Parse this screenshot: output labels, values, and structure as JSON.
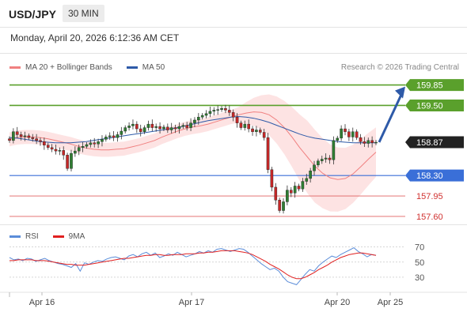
{
  "header": {
    "symbol": "USD/JPY",
    "timeframe": "30 MIN",
    "datetime": "Monday, April 20, 2026 6:12:36 AM CET"
  },
  "legend": {
    "ma20_label": "MA 20 + Bollinger Bands",
    "ma50_label": "MA 50",
    "ma20_color": "#f08080",
    "ma50_color": "#2e5aa8",
    "copyright": "Research © 2026 Trading Central"
  },
  "rsi_legend": {
    "rsi_label": "RSI",
    "ma_label": "9MA",
    "rsi_color": "#5b8dd9",
    "ma_color": "#e02020"
  },
  "colors": {
    "green": "#5aa02c",
    "blue": "#3a6fd8",
    "red": "#e06060",
    "arrow": "#2e5aa8",
    "candle_up": "#2f7d32",
    "candle_down": "#c62828",
    "band_fill": "#fde0e0"
  },
  "chart_data": {
    "type": "candlestick",
    "price_range": [
      157.45,
      159.98
    ],
    "levels": [
      {
        "value": 159.85,
        "label": "159.85",
        "kind": "resistance"
      },
      {
        "value": 159.5,
        "label": "159.50",
        "kind": "resistance"
      },
      {
        "value": 158.87,
        "label": "158.87",
        "kind": "current"
      },
      {
        "value": 158.3,
        "label": "158.30",
        "kind": "support"
      },
      {
        "value": 157.95,
        "label": "157.95",
        "kind": "support"
      },
      {
        "value": 157.6,
        "label": "157.60",
        "kind": "support"
      }
    ],
    "x_labels": [
      "Apr 16",
      "Apr 17",
      "Apr 20",
      "Apr 25"
    ],
    "closes": [
      158.9,
      159.05,
      159.0,
      158.97,
      158.98,
      158.95,
      158.93,
      158.9,
      158.88,
      158.82,
      158.78,
      158.75,
      158.72,
      158.73,
      158.65,
      158.42,
      158.68,
      158.72,
      158.78,
      158.8,
      158.83,
      158.86,
      158.84,
      158.88,
      158.92,
      158.96,
      158.98,
      158.95,
      159.0,
      159.06,
      159.12,
      159.15,
      159.18,
      159.1,
      159.05,
      159.12,
      159.18,
      159.12,
      159.14,
      159.1,
      159.13,
      159.08,
      159.12,
      159.1,
      159.14,
      159.16,
      159.12,
      159.2,
      159.25,
      159.3,
      159.33,
      159.36,
      159.4,
      159.42,
      159.43,
      159.45,
      159.42,
      159.38,
      159.3,
      159.2,
      159.12,
      159.18,
      159.1,
      159.05,
      159.08,
      159.04,
      158.95,
      158.4,
      158.1,
      157.88,
      157.7,
      157.85,
      158.05,
      158.0,
      158.12,
      158.07,
      158.2,
      158.25,
      158.38,
      158.48,
      158.55,
      158.58,
      158.6,
      158.57,
      158.9,
      158.94,
      159.1,
      159.05,
      158.96,
      159.05,
      158.95,
      158.88,
      158.85,
      158.9,
      158.86,
      158.87
    ],
    "ma20_values": [
      158.92,
      158.95,
      158.96,
      158.96,
      158.95,
      158.93,
      158.9,
      158.87,
      158.84,
      158.8,
      158.77,
      158.75,
      158.74,
      158.74,
      158.75,
      158.76,
      158.79,
      158.82,
      158.86,
      158.9,
      158.96,
      159.01,
      159.06,
      159.1,
      159.13,
      159.15,
      159.18,
      159.22,
      159.26,
      159.3,
      159.34,
      159.37,
      159.39,
      159.38,
      159.34,
      159.25,
      159.12,
      158.96,
      158.78,
      158.62,
      158.46,
      158.34,
      158.26,
      158.23,
      158.25,
      158.33,
      158.45,
      158.58,
      158.7
    ],
    "ma50_values": [
      158.95,
      158.94,
      158.92,
      158.9,
      158.88,
      158.87,
      158.86,
      158.86,
      158.86,
      158.87,
      158.88,
      158.9,
      158.92,
      158.94,
      158.96,
      158.98,
      159.0,
      159.02,
      159.04,
      159.06,
      159.08,
      159.1,
      159.12,
      159.15,
      159.18,
      159.21,
      159.24,
      159.26,
      159.28,
      159.3,
      159.31,
      159.3,
      159.28,
      159.25,
      159.21,
      159.16,
      159.11,
      159.06,
      159.01,
      158.97,
      158.94,
      158.92,
      158.9,
      158.88,
      158.87,
      158.86,
      158.86,
      158.86,
      158.86
    ],
    "rsi": {
      "levels": [
        {
          "value": 70,
          "label": "70"
        },
        {
          "value": 50,
          "label": "50"
        },
        {
          "value": 30,
          "label": "30"
        }
      ],
      "rsi_values": [
        56,
        53,
        54,
        52,
        55,
        54,
        51,
        53,
        55,
        52,
        50,
        48,
        47,
        45,
        43,
        48,
        38,
        49,
        47,
        50,
        52,
        51,
        54,
        56,
        57,
        55,
        53,
        58,
        60,
        57,
        61,
        63,
        59,
        62,
        56,
        58,
        61,
        59,
        63,
        60,
        57,
        59,
        61,
        64,
        62,
        65,
        63,
        67,
        68,
        66,
        64,
        66,
        68,
        67,
        63,
        58,
        53,
        48,
        44,
        40,
        42,
        38,
        30,
        24,
        22,
        20,
        27,
        34,
        40,
        38,
        45,
        50,
        54,
        58,
        56,
        60,
        63,
        66,
        69,
        64,
        61,
        57,
        60,
        59
      ],
      "ma_values": [
        52,
        52,
        53,
        53,
        53,
        53,
        52,
        52,
        52,
        51,
        50,
        49,
        48,
        47,
        47,
        46,
        46,
        46,
        47,
        48,
        49,
        50,
        51,
        52,
        53,
        54,
        55,
        55,
        56,
        57,
        58,
        59,
        59,
        60,
        60,
        59,
        59,
        60,
        60,
        60,
        61,
        61,
        61,
        62,
        62,
        63,
        63,
        64,
        65,
        65,
        65,
        65,
        64,
        63,
        62,
        60,
        57,
        54,
        51,
        47,
        44,
        41,
        37,
        33,
        30,
        28,
        28,
        30,
        33,
        36,
        40,
        43,
        46,
        50,
        53,
        56,
        58,
        60,
        61,
        62,
        62,
        61,
        60,
        59
      ],
      "range": [
        10,
        78
      ]
    }
  }
}
